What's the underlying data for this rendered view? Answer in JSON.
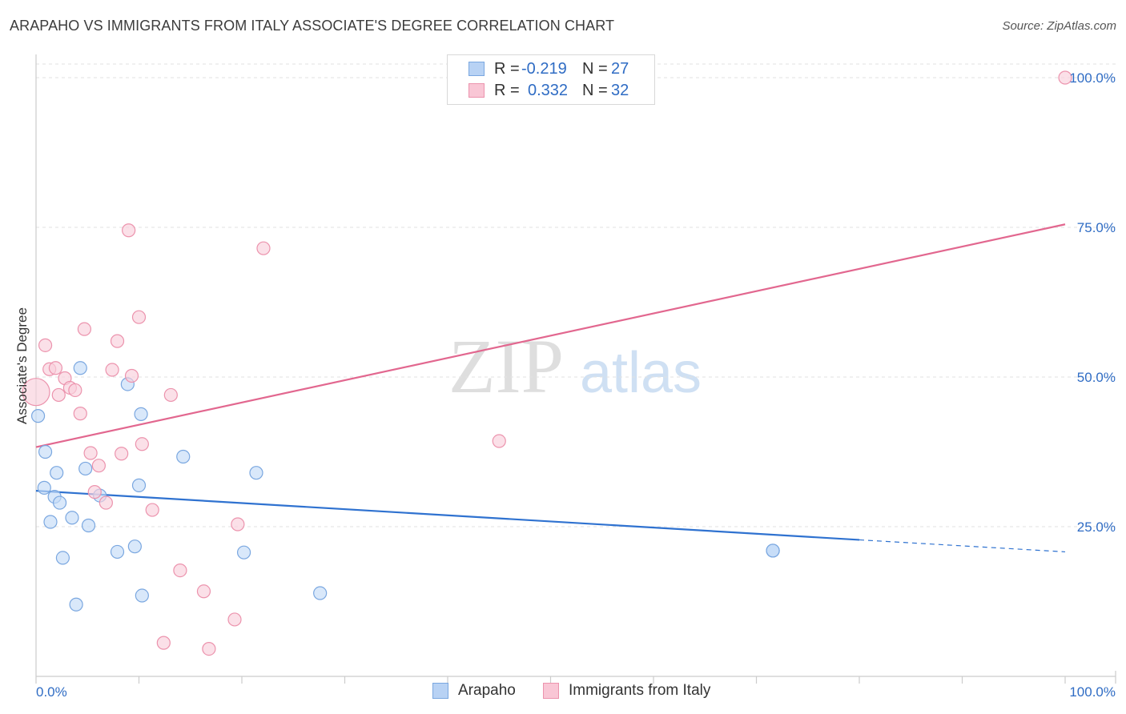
{
  "title": "ARAPAHO VS IMMIGRANTS FROM ITALY ASSOCIATE'S DEGREE CORRELATION CHART",
  "source": "Source: ZipAtlas.com",
  "watermark": {
    "zip": "ZIP",
    "atlas": "atlas"
  },
  "legend": {
    "rows": [
      {
        "r_label": "R =",
        "r_value": "-0.219",
        "n_label": "N =",
        "n_value": "27",
        "color": "#b8d2f4",
        "border": "#7aa7e0"
      },
      {
        "r_label": "R =",
        "r_value": "0.332",
        "n_label": "N =",
        "n_value": "32",
        "color": "#f9c6d5",
        "border": "#ec93ad"
      }
    ]
  },
  "bottom_legend": [
    {
      "label": "Arapaho",
      "color": "#b8d2f4",
      "border": "#7aa7e0"
    },
    {
      "label": "Immigrants from Italy",
      "color": "#f9c6d5",
      "border": "#ec93ad"
    }
  ],
  "chart_data": {
    "type": "scatter",
    "title": "ARAPAHO VS IMMIGRANTS FROM ITALY ASSOCIATE'S DEGREE CORRELATION CHART",
    "xlabel": "",
    "ylabel": "Associate's Degree",
    "xlim": [
      0,
      100
    ],
    "ylim": [
      0,
      102
    ],
    "x_tick_labels": [
      "0.0%",
      "100.0%"
    ],
    "y_ticks": [
      25,
      50,
      75,
      100
    ],
    "y_tick_labels": [
      "25.0%",
      "50.0%",
      "75.0%",
      "100.0%"
    ],
    "grid": true,
    "series": [
      {
        "name": "Arapaho",
        "color": "#7aa7e0",
        "fill": "#c4dbf7",
        "line_color": "#2f72d0",
        "trend": {
          "x0": 0,
          "y0": 31,
          "x1": 80,
          "y1": 22.8,
          "dash_to_x": 100,
          "dash_to_y": 20.8
        },
        "points": [
          [
            0.2,
            43.5
          ],
          [
            0.8,
            31.5
          ],
          [
            0.9,
            37.5
          ],
          [
            1.4,
            25.8
          ],
          [
            1.8,
            30.0
          ],
          [
            2.0,
            34.0
          ],
          [
            2.3,
            29.0
          ],
          [
            2.6,
            19.8
          ],
          [
            3.5,
            26.5
          ],
          [
            3.9,
            12.0
          ],
          [
            4.3,
            51.5
          ],
          [
            4.8,
            34.7
          ],
          [
            5.1,
            25.2
          ],
          [
            6.2,
            30.2
          ],
          [
            7.9,
            20.8
          ],
          [
            8.9,
            48.8
          ],
          [
            9.6,
            21.7
          ],
          [
            10.0,
            31.9
          ],
          [
            10.2,
            43.8
          ],
          [
            10.3,
            13.5
          ],
          [
            14.3,
            36.7
          ],
          [
            20.2,
            20.7
          ],
          [
            21.4,
            34.0
          ],
          [
            27.6,
            13.9
          ],
          [
            71.6,
            21.0
          ],
          [
            71.6,
            21.0
          ],
          [
            71.6,
            21.0
          ]
        ]
      },
      {
        "name": "Immigrants from Italy",
        "color": "#ec93ad",
        "fill": "#f9cfdb",
        "line_color": "#e2678f",
        "trend": {
          "x0": 0,
          "y0": 38.3,
          "x1": 100,
          "y1": 75.5
        },
        "points": [
          [
            0.0,
            47.5
          ],
          [
            0.9,
            55.3
          ],
          [
            1.3,
            51.3
          ],
          [
            1.9,
            51.5
          ],
          [
            2.2,
            47.0
          ],
          [
            2.8,
            49.8
          ],
          [
            3.3,
            48.2
          ],
          [
            3.8,
            47.8
          ],
          [
            4.3,
            43.9
          ],
          [
            4.7,
            58.0
          ],
          [
            5.3,
            37.3
          ],
          [
            5.7,
            30.8
          ],
          [
            6.1,
            35.2
          ],
          [
            6.8,
            29.0
          ],
          [
            7.4,
            51.2
          ],
          [
            7.9,
            56.0
          ],
          [
            8.3,
            37.2
          ],
          [
            9.0,
            74.5
          ],
          [
            9.3,
            50.2
          ],
          [
            10.0,
            60.0
          ],
          [
            10.3,
            38.8
          ],
          [
            11.3,
            27.8
          ],
          [
            12.4,
            5.6
          ],
          [
            13.1,
            47.0
          ],
          [
            14.0,
            17.7
          ],
          [
            16.3,
            14.2
          ],
          [
            16.8,
            4.6
          ],
          [
            19.3,
            9.5
          ],
          [
            19.6,
            25.4
          ],
          [
            22.1,
            71.5
          ],
          [
            45.0,
            39.3
          ],
          [
            100.0,
            100.0
          ]
        ]
      }
    ]
  }
}
